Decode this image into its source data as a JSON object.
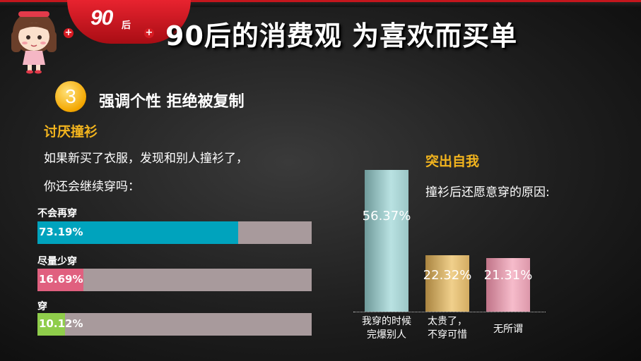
{
  "header": {
    "badge_main": "90",
    "badge_sub": "后",
    "plus": "+",
    "title": "90后的消费观 为喜欢而买单"
  },
  "section": {
    "number": "3",
    "title": "强调个性 拒绝被复制"
  },
  "left_panel": {
    "subtitle": "讨厌撞衫",
    "question_line1": "如果新买了衣服，发现和别人撞衫了，",
    "question_line2": "你还会继续穿吗："
  },
  "right_panel": {
    "subtitle": "突出自我",
    "question": "撞衫后还愿意穿的原因:"
  },
  "chart_data": [
    {
      "type": "bar",
      "orientation": "horizontal",
      "categories": [
        "不会再穿",
        "尽量少穿",
        "穿"
      ],
      "values": [
        73.19,
        16.69,
        10.12
      ],
      "value_labels": [
        "73.19%",
        "16.69%",
        "10.12%"
      ],
      "colors": [
        "#00a3bd",
        "#e0607f",
        "#8fcd4b"
      ],
      "track_color": "#a89a9c",
      "xlim": [
        0,
        100
      ]
    },
    {
      "type": "bar",
      "orientation": "vertical",
      "categories": [
        "我穿的时候\n完爆别人",
        "太贵了，\n不穿可惜",
        "无所谓"
      ],
      "values": [
        56.37,
        22.32,
        21.31
      ],
      "value_labels": [
        "56.37%",
        "22.32%",
        "21.31%"
      ],
      "colors": [
        "#9fc9c9",
        "#e3c07a",
        "#e8a3b4"
      ],
      "ylim": [
        0,
        56.37
      ]
    }
  ]
}
